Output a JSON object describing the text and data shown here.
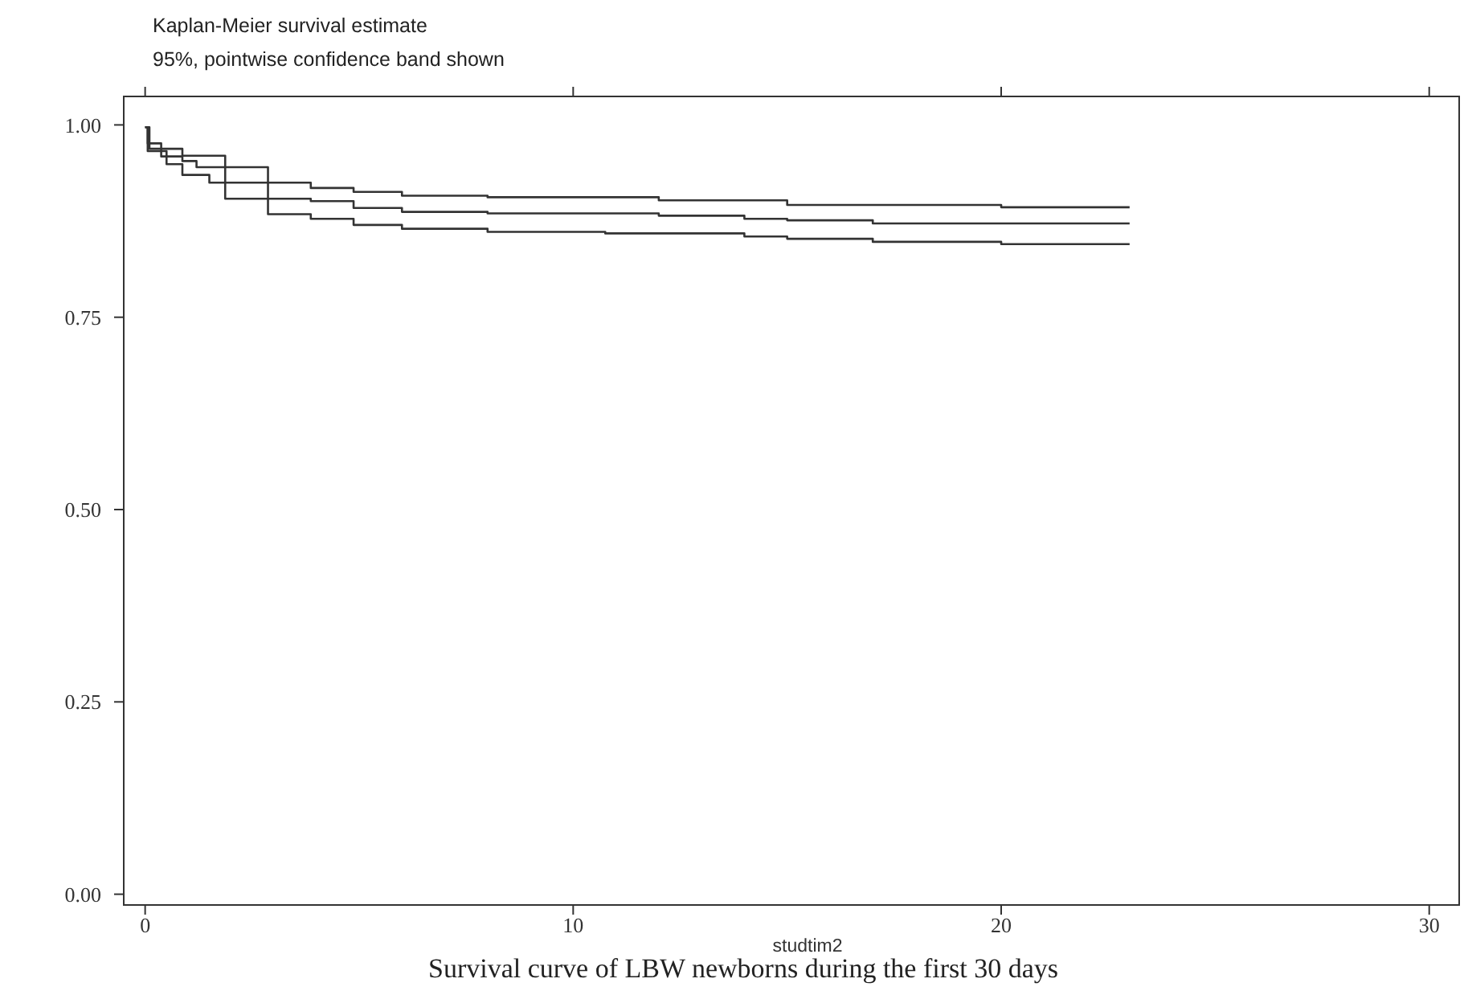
{
  "chart_data": {
    "type": "step",
    "title": "Kaplan-Meier survival estimate",
    "subtitle": "95%, pointwise confidence band shown",
    "xlabel": "studtim2",
    "annotations": [
      "Survival curve of LBW newborns during the first 30 days"
    ],
    "xlim": [
      -0.5,
      30.7
    ],
    "ylim": [
      -0.014,
      1.037
    ],
    "xticks": [
      0,
      10,
      20,
      30
    ],
    "yticks": [
      {
        "value": 0,
        "label": "0.00"
      },
      {
        "value": 0.25,
        "label": "0.25"
      },
      {
        "value": 0.5,
        "label": "0.50"
      },
      {
        "value": 0.75,
        "label": "0.75"
      },
      {
        "value": 1,
        "label": "1.00"
      }
    ],
    "grid": false,
    "line_style": "solid",
    "marker": "none",
    "series": [
      {
        "color": "#333333",
        "x": [
          0,
          0.06,
          0.375,
          0.87,
          1.87,
          3.87,
          4.87,
          6,
          8,
          12,
          14,
          15,
          17,
          23
        ],
        "values": [
          0.997,
          0.976,
          0.969,
          0.96,
          0.904,
          0.901,
          0.892,
          0.887,
          0.885,
          0.882,
          0.878,
          0.876,
          0.872,
          0.872
        ]
      },
      {
        "color": "#333333",
        "x": [
          0,
          0.1,
          0.375,
          0.87,
          1.2,
          2.87,
          3.87,
          4.87,
          6,
          8,
          10.75,
          14,
          15,
          17,
          20,
          23
        ],
        "values": [
          0.997,
          0.969,
          0.959,
          0.953,
          0.945,
          0.884,
          0.878,
          0.87,
          0.865,
          0.861,
          0.859,
          0.855,
          0.852,
          0.848,
          0.845,
          0.845
        ]
      },
      {
        "color": "#333333",
        "x": [
          0,
          0.06,
          0.5,
          0.87,
          1.5,
          3.87,
          4.87,
          6,
          8,
          12,
          15,
          20,
          23
        ],
        "values": [
          0.997,
          0.966,
          0.949,
          0.935,
          0.925,
          0.918,
          0.913,
          0.908,
          0.906,
          0.902,
          0.896,
          0.893,
          0.893
        ]
      }
    ]
  }
}
